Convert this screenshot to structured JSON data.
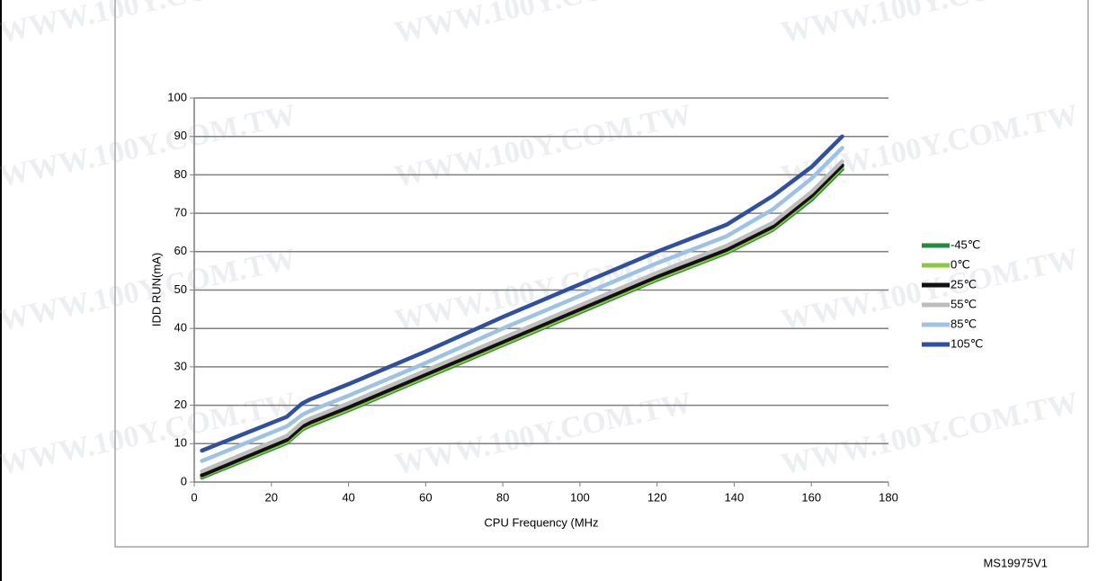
{
  "chart_data": {
    "type": "line",
    "y_label": "IDD RUN(mA)",
    "x_label": "CPU Frequency (MHz",
    "footer": "MS19975V1",
    "watermark": "WWW.100Y.COM.TW",
    "x": [
      2,
      24,
      28,
      30,
      40,
      60,
      80,
      100,
      120,
      138,
      150,
      160,
      168
    ],
    "series": [
      {
        "name": "-45℃",
        "color": "#1e8c3a",
        "values": [
          1.2,
          10.2,
          13.7,
          14.7,
          18.7,
          27.2,
          35.7,
          44.2,
          52.7,
          59.7,
          65.7,
          73.5,
          81.5
        ]
      },
      {
        "name": "0℃",
        "color": "#8dc63f",
        "values": [
          1.5,
          10.5,
          14,
          15,
          19,
          27.5,
          36,
          44.5,
          53,
          60,
          66,
          74,
          82
        ]
      },
      {
        "name": "25℃",
        "color": "#111111",
        "values": [
          1.8,
          11,
          14.5,
          15.5,
          19.5,
          28,
          36.5,
          45,
          53.5,
          60.5,
          66.5,
          74.5,
          82.5
        ]
      },
      {
        "name": "55℃",
        "color": "#bdbdbd",
        "values": [
          2.8,
          12,
          15.5,
          16.5,
          20.5,
          29,
          37.5,
          46,
          54.5,
          61.5,
          67.5,
          75.5,
          83.5
        ]
      },
      {
        "name": "85℃",
        "color": "#9cc3e6",
        "values": [
          5.5,
          14.5,
          17.5,
          18.5,
          22.5,
          31,
          40,
          48.5,
          57,
          64,
          71,
          79,
          87
        ]
      },
      {
        "name": "105℃",
        "color": "#2f4fa2",
        "values": [
          8.2,
          17,
          20.5,
          21.5,
          25.5,
          34,
          43,
          51.5,
          60,
          67,
          74.5,
          82,
          90
        ]
      }
    ],
    "xlim": [
      0,
      180
    ],
    "xticks": [
      0,
      20,
      40,
      60,
      80,
      100,
      120,
      140,
      160,
      180
    ],
    "ylim": [
      0,
      100
    ],
    "yticks": [
      0,
      10,
      20,
      30,
      40,
      50,
      60,
      70,
      80,
      90,
      100
    ],
    "grid": true,
    "legend": "right"
  }
}
